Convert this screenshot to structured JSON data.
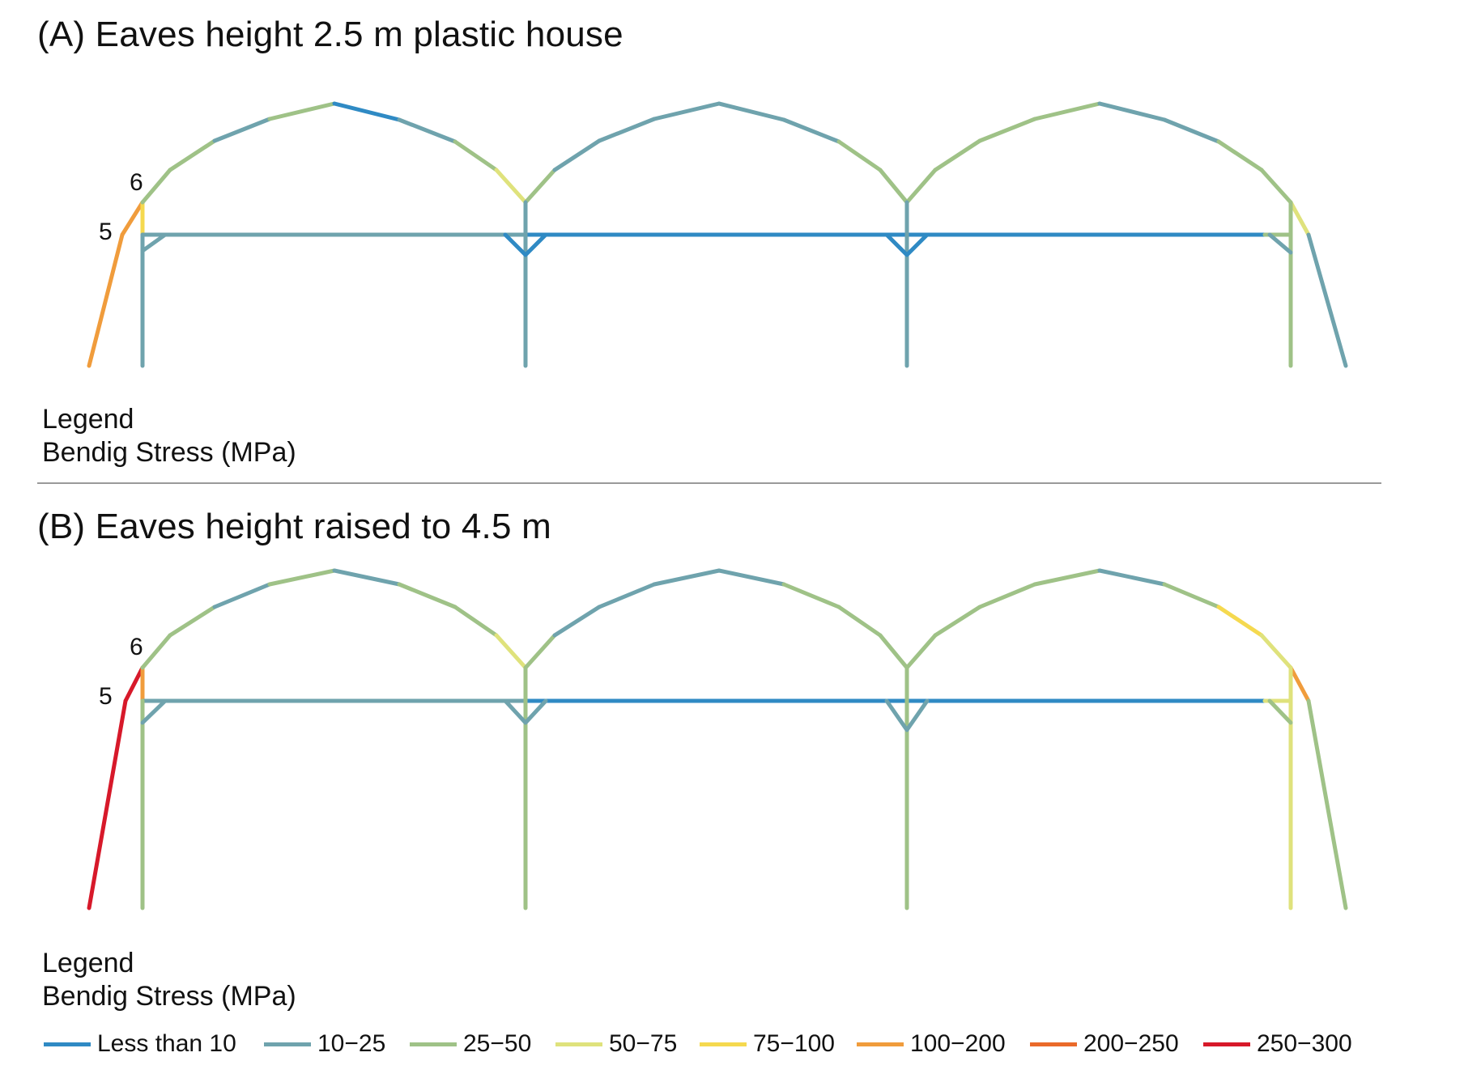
{
  "panel_a": {
    "title": "(A) Eaves height 2.5 m plastic house",
    "legend_heading": "Legend",
    "legend_subheading": "Bendig Stress (MPa)",
    "node_labels": [
      "6",
      "5"
    ]
  },
  "panel_b": {
    "title": "(B) Eaves height raised to 4.5 m",
    "legend_heading": "Legend",
    "legend_subheading": "Bendig Stress (MPa)",
    "node_labels": [
      "6",
      "5"
    ]
  },
  "legend": [
    {
      "label": "Less than 10",
      "color": "#2f8ac4"
    },
    {
      "label": "10−25",
      "color": "#6fa3ad"
    },
    {
      "label": "25−50",
      "color": "#9fc287"
    },
    {
      "label": "50−75",
      "color": "#dfe27c"
    },
    {
      "label": "75−100",
      "color": "#f5d94f"
    },
    {
      "label": "100−200",
      "color": "#f09c3c"
    },
    {
      "label": "200−250",
      "color": "#ea6a2a"
    },
    {
      "label": "250−300",
      "color": "#d7192a"
    }
  ],
  "stress_colors": {
    "lt10": "#2f8ac4",
    "s10_25": "#6fa3ad",
    "s25_50": "#9fc287",
    "s50_75": "#dfe27c",
    "s75_100": "#f5d94f",
    "s100_200": "#f09c3c",
    "s200_250": "#ea6a2a",
    "s250_300": "#d7192a"
  }
}
